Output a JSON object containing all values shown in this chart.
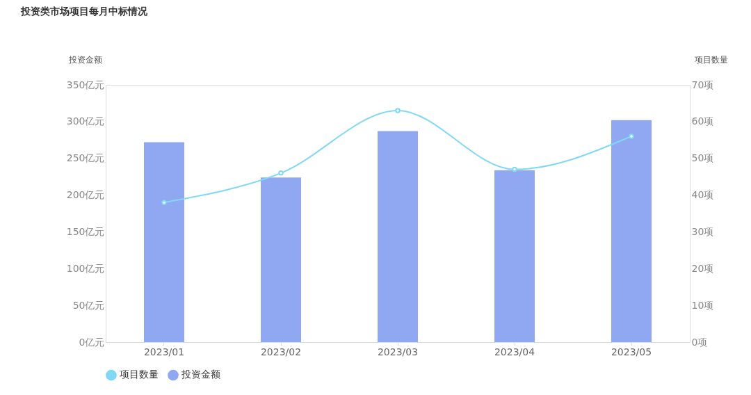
{
  "chart_data": {
    "type": "bar",
    "title": "投资类市场项目每月中标情况",
    "ylabel": "投资金额",
    "y2label": "项目数量",
    "categories": [
      "2023/01",
      "2023/02",
      "2023/03",
      "2023/04",
      "2023/05"
    ],
    "series": [
      {
        "name": "项目数量",
        "type": "line",
        "axis": "y2",
        "color": "#80d8f5",
        "values": [
          38,
          46,
          63,
          47,
          56
        ]
      },
      {
        "name": "投资金额",
        "color": "#90a8f2",
        "values": [
          272,
          224,
          287,
          234,
          302
        ]
      }
    ],
    "ylim": [
      0,
      350
    ],
    "yticks": [
      {
        "value": 0,
        "label": "0亿元"
      },
      {
        "value": 50,
        "label": "50亿元"
      },
      {
        "value": 100,
        "label": "100亿元"
      },
      {
        "value": 150,
        "label": "150亿元"
      },
      {
        "value": 200,
        "label": "200亿元"
      },
      {
        "value": 250,
        "label": "250亿元"
      },
      {
        "value": 300,
        "label": "300亿元"
      },
      {
        "value": 350,
        "label": "350亿元"
      }
    ],
    "y2lim": [
      0,
      70
    ],
    "y2ticks": [
      {
        "value": 0,
        "label": "0项"
      },
      {
        "value": 10,
        "label": "10项"
      },
      {
        "value": 20,
        "label": "20项"
      },
      {
        "value": 30,
        "label": "30项"
      },
      {
        "value": 40,
        "label": "40项"
      },
      {
        "value": 50,
        "label": "50项"
      },
      {
        "value": 60,
        "label": "60项"
      },
      {
        "value": 70,
        "label": "70项"
      }
    ],
    "grid": false,
    "legend": "bottom",
    "marker": "circle",
    "line_style": "solid"
  }
}
